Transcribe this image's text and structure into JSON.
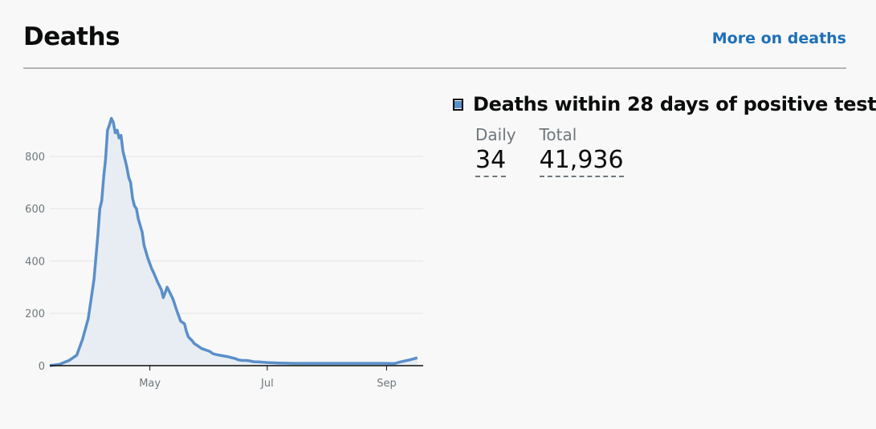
{
  "header": {
    "title": "Deaths",
    "more_link": "More on deaths"
  },
  "metric": {
    "title": "Deaths within 28 days of positive test",
    "daily_label": "Daily",
    "daily_value": "34",
    "total_label": "Total",
    "total_value": "41,936",
    "color": "#5a8fc9"
  },
  "chart_data": {
    "type": "area",
    "x_ticks": [
      "May",
      "Jul",
      "Sep"
    ],
    "y_ticks": [
      0,
      200,
      400,
      600,
      800
    ],
    "ylim": [
      0,
      950
    ],
    "grid": "horizontal",
    "line_color": "#5a8fc9",
    "fill_color": "#e8edf3",
    "series": [
      {
        "x": [
          "2020-03-10",
          "2020-03-15",
          "2020-03-20",
          "2020-03-24",
          "2020-03-27",
          "2020-03-30",
          "2020-04-02",
          "2020-04-04",
          "2020-04-05",
          "2020-04-06",
          "2020-04-07",
          "2020-04-08",
          "2020-04-09",
          "2020-04-10",
          "2020-04-11",
          "2020-04-12",
          "2020-04-13",
          "2020-04-14",
          "2020-04-15",
          "2020-04-16",
          "2020-04-17",
          "2020-04-18",
          "2020-04-19",
          "2020-04-20",
          "2020-04-21",
          "2020-04-22",
          "2020-04-23",
          "2020-04-24",
          "2020-04-25",
          "2020-04-27",
          "2020-04-28",
          "2020-04-30",
          "2020-05-02",
          "2020-05-03",
          "2020-05-05",
          "2020-05-07",
          "2020-05-08",
          "2020-05-10",
          "2020-05-12",
          "2020-05-13",
          "2020-05-15",
          "2020-05-17",
          "2020-05-19",
          "2020-05-20",
          "2020-05-21",
          "2020-05-23",
          "2020-05-24",
          "2020-05-26",
          "2020-05-27",
          "2020-05-28",
          "2020-05-30",
          "2020-06-01",
          "2020-06-03",
          "2020-06-06",
          "2020-06-10",
          "2020-06-14",
          "2020-06-16",
          "2020-06-18",
          "2020-06-20",
          "2020-06-22",
          "2020-06-24",
          "2020-06-27",
          "2020-07-01",
          "2020-07-07",
          "2020-07-15",
          "2020-07-25",
          "2020-08-01",
          "2020-08-10",
          "2020-08-20",
          "2020-08-31",
          "2020-09-05",
          "2020-09-08",
          "2020-09-13",
          "2020-09-17"
        ],
        "y": [
          0,
          5,
          20,
          40,
          100,
          180,
          330,
          500,
          600,
          630,
          720,
          790,
          900,
          920,
          945,
          930,
          890,
          900,
          870,
          880,
          820,
          790,
          760,
          720,
          700,
          640,
          610,
          600,
          560,
          510,
          460,
          410,
          370,
          355,
          320,
          290,
          260,
          300,
          270,
          255,
          210,
          170,
          160,
          130,
          110,
          95,
          85,
          75,
          70,
          65,
          60,
          55,
          45,
          40,
          35,
          28,
          22,
          20,
          20,
          18,
          15,
          14,
          12,
          10,
          9,
          9,
          9,
          9,
          9,
          9,
          8,
          14,
          22,
          30
        ]
      }
    ]
  }
}
